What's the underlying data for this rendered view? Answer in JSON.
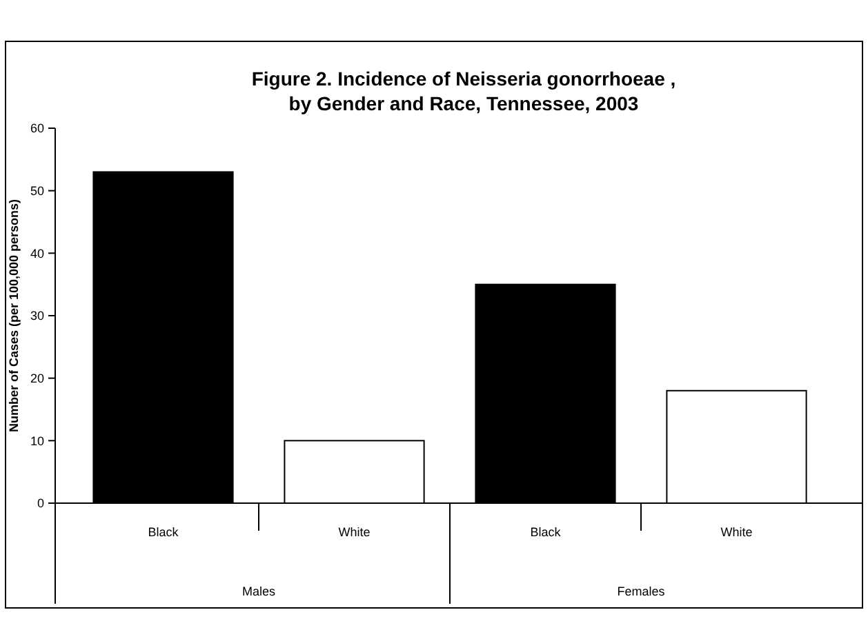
{
  "chart_data": {
    "type": "bar",
    "title": "Figure 2. Incidence of Neisseria gonorrhoeae ,\nby Gender and Race, Tennessee, 2003",
    "ylabel": "Number of Cases (per 100,000 persons)",
    "categories": [
      "Black",
      "White",
      "Black",
      "White"
    ],
    "values": [
      53,
      10,
      35,
      18
    ],
    "colors": [
      "#000000",
      "#ffffff",
      "#000000",
      "#ffffff"
    ],
    "annotations": [
      "Males",
      "Females"
    ],
    "ylim": [
      0,
      60
    ],
    "yticks": [
      0,
      10,
      20,
      30,
      40,
      50,
      60
    ],
    "grid": false
  }
}
